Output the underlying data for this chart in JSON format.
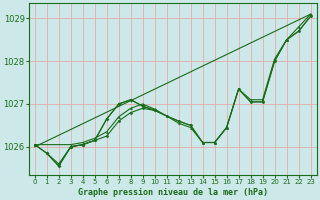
{
  "bg_color": "#cce8e8",
  "grid_color": "#e8a0a0",
  "line_color": "#1a6b1a",
  "ylim": [
    1025.35,
    1029.35
  ],
  "xlim": [
    -0.5,
    23.5
  ],
  "yticks": [
    1026,
    1027,
    1028,
    1029
  ],
  "xticks": [
    0,
    1,
    2,
    3,
    4,
    5,
    6,
    7,
    8,
    9,
    10,
    11,
    12,
    13,
    14,
    15,
    16,
    17,
    18,
    19,
    20,
    21,
    22,
    23
  ],
  "xlabel": "Graphe pression niveau de la mer (hPa)",
  "straight_line": {
    "x": [
      0,
      23
    ],
    "y": [
      1026.0,
      1029.1
    ]
  },
  "line_a": {
    "x": [
      0,
      1,
      2,
      3,
      4,
      5,
      6,
      7,
      8,
      9,
      10,
      11,
      12,
      13,
      14,
      15,
      16,
      17,
      18,
      19,
      20,
      21,
      22,
      23
    ],
    "y": [
      1026.05,
      1025.85,
      1025.6,
      1026.0,
      1026.05,
      1026.15,
      1026.25,
      1026.6,
      1026.8,
      1026.9,
      1026.85,
      1026.72,
      1026.6,
      1026.5,
      1026.1,
      1026.1,
      1026.45,
      1027.35,
      1027.05,
      1027.05,
      1028.0,
      1028.5,
      1028.7,
      1029.05
    ]
  },
  "line_b": {
    "x": [
      0,
      1,
      2,
      3,
      4,
      5,
      6,
      7,
      8,
      9,
      10,
      11,
      12,
      13,
      14,
      15,
      16,
      17,
      18,
      19,
      20,
      21,
      22,
      23
    ],
    "y": [
      1026.05,
      1025.85,
      1025.55,
      1026.0,
      1026.05,
      1026.15,
      1026.65,
      1027.0,
      1027.1,
      1026.95,
      1026.85,
      1026.72,
      1026.6,
      1026.5,
      1026.1,
      1026.1,
      1026.45,
      1027.35,
      1027.05,
      1027.05,
      1028.0,
      1028.5,
      1028.7,
      1029.05
    ]
  },
  "line_c": {
    "x": [
      1,
      2,
      3,
      4,
      5,
      6,
      7,
      8,
      9,
      10
    ],
    "y": [
      1025.85,
      1025.55,
      1026.0,
      1026.05,
      1026.15,
      1026.65,
      1027.0,
      1027.1,
      1026.95,
      1026.85
    ]
  },
  "line_d": {
    "x": [
      0,
      3,
      4,
      5,
      6,
      7,
      8,
      9,
      10,
      11,
      12,
      13,
      14,
      15,
      16,
      17,
      18,
      19,
      20,
      21,
      22,
      23
    ],
    "y": [
      1026.05,
      1026.05,
      1026.1,
      1026.2,
      1026.35,
      1026.7,
      1026.9,
      1027.0,
      1026.88,
      1026.72,
      1026.55,
      1026.45,
      1026.1,
      1026.1,
      1026.45,
      1027.35,
      1027.1,
      1027.1,
      1028.05,
      1028.5,
      1028.8,
      1029.1
    ]
  }
}
